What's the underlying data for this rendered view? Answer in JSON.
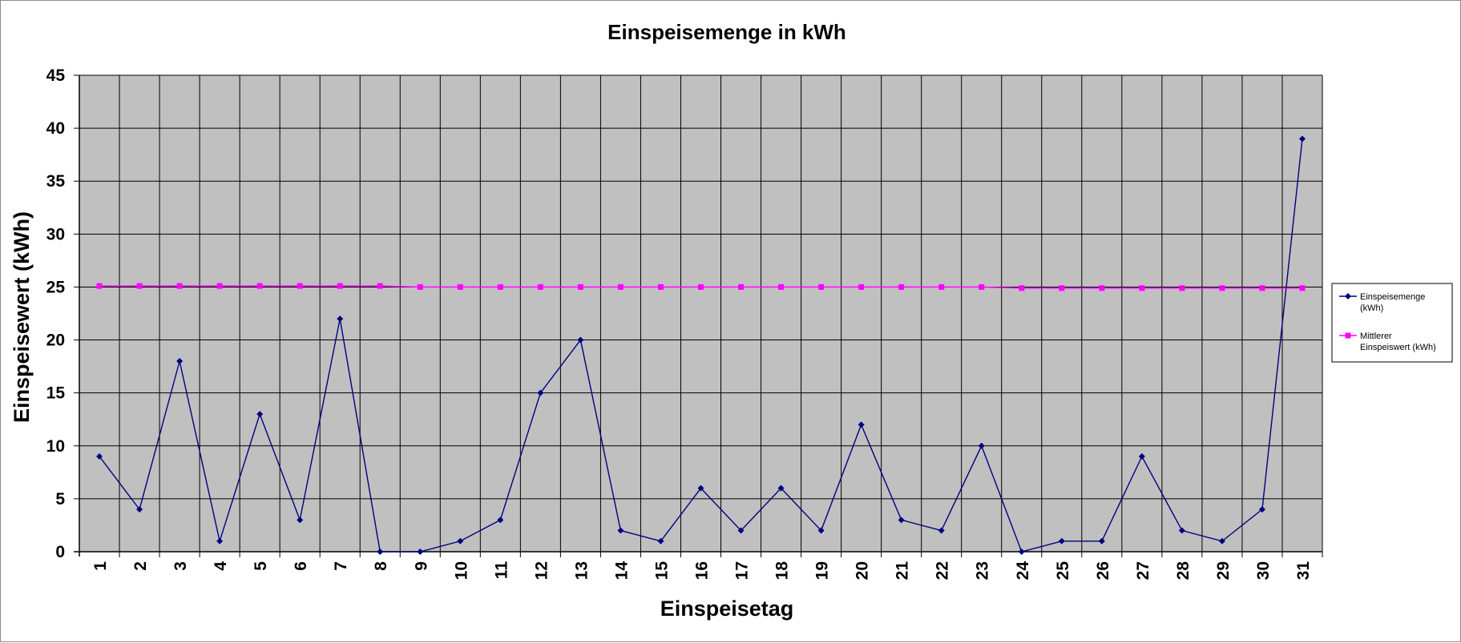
{
  "chart_data": {
    "type": "line",
    "title": "Einspeisemenge in kWh",
    "xlabel": "Einspeisetag",
    "ylabel": "Einspeisewert  (kWh)",
    "ylim": [
      0,
      45
    ],
    "yticks": [
      "0",
      "5",
      "10",
      "15",
      "20",
      "25",
      "30",
      "35",
      "40",
      "45"
    ],
    "categories": [
      "1",
      "2",
      "3",
      "4",
      "5",
      "6",
      "7",
      "8",
      "9",
      "10",
      "11",
      "12",
      "13",
      "14",
      "15",
      "16",
      "17",
      "18",
      "19",
      "20",
      "21",
      "22",
      "23",
      "24",
      "25",
      "26",
      "27",
      "28",
      "29",
      "30",
      "31"
    ],
    "grid": true,
    "legend_position": "right",
    "series": [
      {
        "name": "Einspeisemenge (kWh)",
        "legend_lines": [
          "Einspeisemenge",
          "(kWh)"
        ],
        "color": "#000080",
        "marker": "diamond",
        "values": [
          9,
          4,
          18,
          1,
          13,
          3,
          22,
          0,
          0,
          1,
          3,
          15,
          20,
          2,
          1,
          6,
          2,
          6,
          2,
          12,
          3,
          2,
          10,
          0,
          1,
          1,
          9,
          2,
          1,
          4,
          39
        ]
      },
      {
        "name": "Mittlerer Einspeiswert (kWh)",
        "legend_lines": [
          "Mittlerer",
          "Einspeiswert (kWh)"
        ],
        "color": "#ff00ff",
        "marker": "square",
        "values": [
          25.1,
          25.1,
          25.1,
          25.1,
          25.1,
          25.1,
          25.1,
          25.1,
          25.0,
          25.0,
          25.0,
          25.0,
          25.0,
          25.0,
          25.0,
          25.0,
          25.0,
          25.0,
          25.0,
          25.0,
          25.0,
          25.0,
          25.0,
          24.9,
          24.9,
          24.9,
          24.9,
          24.9,
          24.9,
          24.9,
          24.9
        ]
      }
    ],
    "plot_background": "#c0c0c0",
    "gridline_color": "#000000"
  }
}
